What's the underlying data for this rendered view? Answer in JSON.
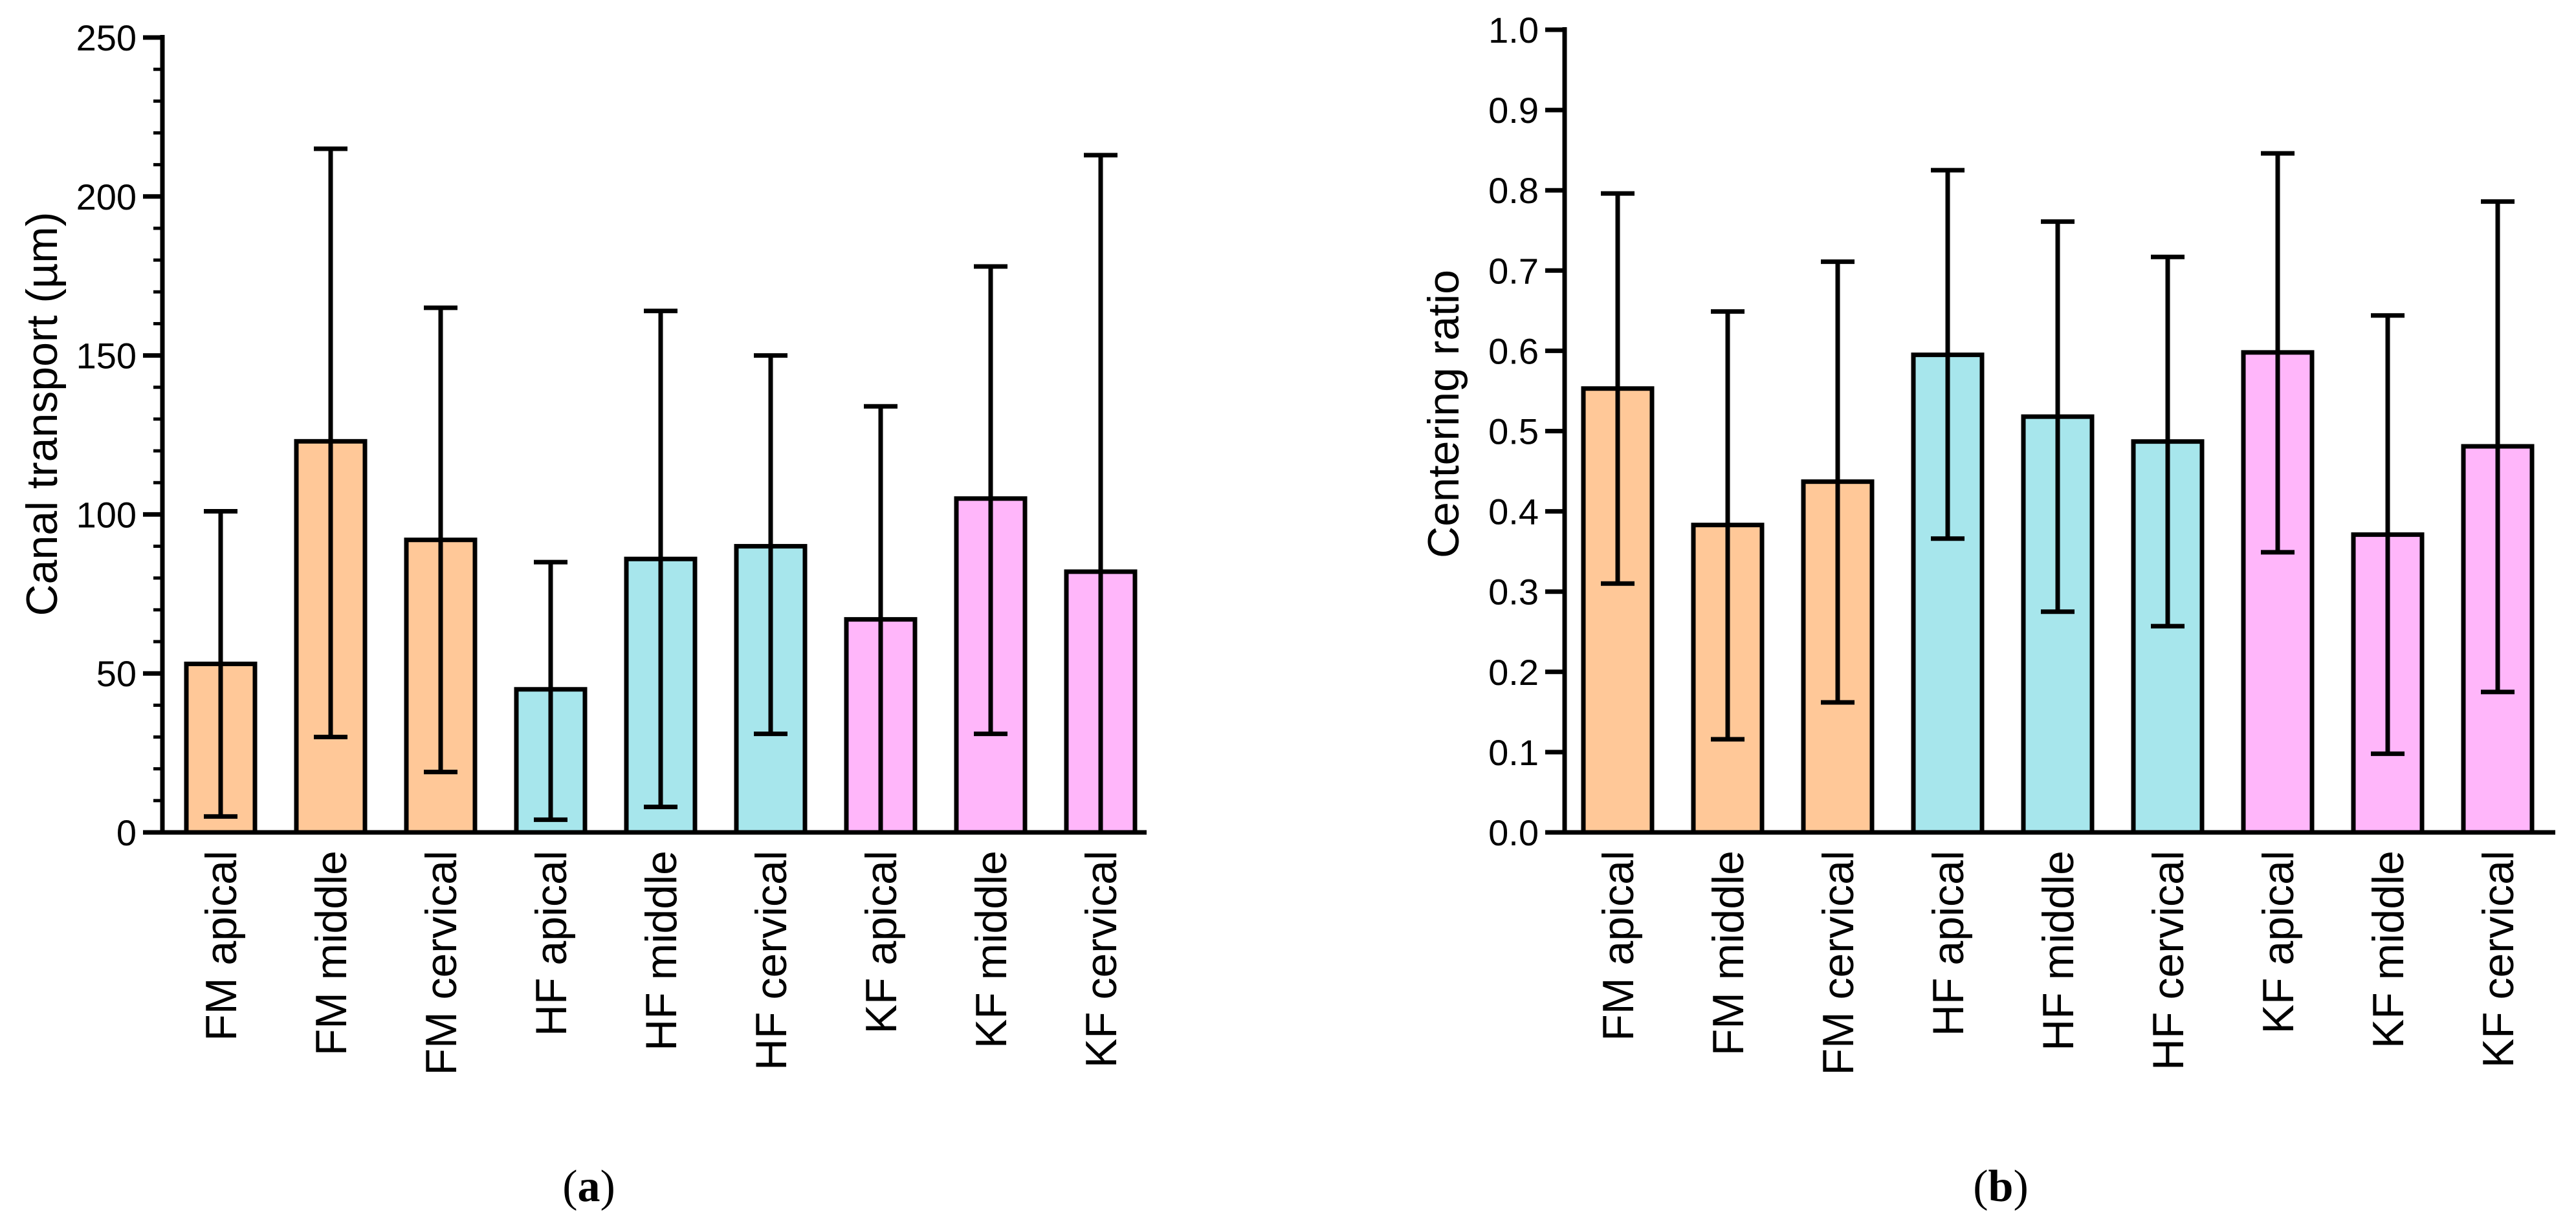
{
  "colors": {
    "FM": "#FFC898",
    "HF": "#A7E6EC",
    "KF": "#FFB6FA",
    "stroke": "#000000"
  },
  "chart_data": [
    {
      "type": "bar",
      "panel_label": "a",
      "title": "",
      "xlabel": "",
      "ylabel": "Canal transport (µm)",
      "ylim": [
        0,
        250
      ],
      "yticks": [
        "0",
        "50",
        "100",
        "150",
        "200",
        "250"
      ],
      "tick_values": [
        0,
        50,
        100,
        150,
        200,
        250
      ],
      "minor_step": 10,
      "categories": [
        "FM apical",
        "FM middle",
        "FM cervical",
        "HF apical",
        "HF middle",
        "HF cervical",
        "KF apical",
        "KF middle",
        "KF cervical"
      ],
      "groups": [
        "FM",
        "FM",
        "FM",
        "HF",
        "HF",
        "HF",
        "KF",
        "KF",
        "KF"
      ],
      "values": [
        53,
        123,
        92,
        45,
        86,
        90,
        67,
        105,
        82
      ],
      "error_upper": [
        101,
        215,
        165,
        85,
        164,
        150,
        134,
        178,
        213
      ],
      "error_lower": [
        5,
        30,
        19,
        4,
        8,
        31,
        0,
        31,
        0
      ]
    },
    {
      "type": "bar",
      "panel_label": "b",
      "title": "",
      "xlabel": "",
      "ylabel": "Centering ratio",
      "ylim": [
        0,
        1.0
      ],
      "yticks": [
        "0.0",
        "0.1",
        "0.2",
        "0.3",
        "0.4",
        "0.5",
        "0.6",
        "0.7",
        "0.8",
        "0.9",
        "1.0"
      ],
      "tick_values": [
        0,
        0.1,
        0.2,
        0.3,
        0.4,
        0.5,
        0.6,
        0.7,
        0.8,
        0.9,
        1.0
      ],
      "minor_step": 0,
      "categories": [
        "FM apical",
        "FM middle",
        "FM cervical",
        "HF apical",
        "HF middle",
        "HF cervical",
        "KF apical",
        "KF middle",
        "KF cervical"
      ],
      "groups": [
        "FM",
        "FM",
        "FM",
        "HF",
        "HF",
        "HF",
        "KF",
        "KF",
        "KF"
      ],
      "values": [
        0.553,
        0.383,
        0.437,
        0.595,
        0.518,
        0.487,
        0.598,
        0.371,
        0.481
      ],
      "error_upper": [
        0.796,
        0.649,
        0.711,
        0.825,
        0.761,
        0.717,
        0.846,
        0.644,
        0.786
      ],
      "error_lower": [
        0.31,
        0.116,
        0.162,
        0.366,
        0.275,
        0.257,
        0.349,
        0.098,
        0.175
      ]
    }
  ]
}
